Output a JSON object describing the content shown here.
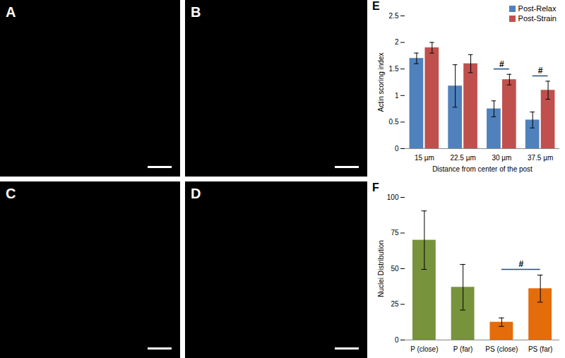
{
  "image_panels": [
    "A",
    "B",
    "C",
    "D"
  ],
  "chart_data": [
    {
      "type": "bar",
      "title": "E",
      "categories": [
        "15 µm",
        "22.5 µm",
        "30 µm",
        "37.5 µm"
      ],
      "series": [
        {
          "name": "Post-Relax",
          "color": "#4f81bd",
          "values": [
            1.7,
            1.18,
            0.75,
            0.54
          ],
          "errors": [
            0.1,
            0.4,
            0.15,
            0.15
          ]
        },
        {
          "name": "Post-Strain",
          "color": "#c0504d",
          "values": [
            1.9,
            1.6,
            1.3,
            1.1
          ],
          "errors": [
            0.1,
            0.17,
            0.1,
            0.17
          ]
        }
      ],
      "xlabel": "Distance from center of the post",
      "ylabel": "Actin scoring index",
      "ylim": [
        0,
        2.5
      ],
      "yticks": [
        0,
        0.5,
        1,
        1.5,
        2,
        2.5
      ],
      "grid": false,
      "legend": "top-right",
      "annotations": [
        {
          "text": "#",
          "x": "30 µm"
        },
        {
          "text": "#",
          "x": "37.5 µm"
        }
      ]
    },
    {
      "type": "bar",
      "title": "F",
      "categories": [
        "P (close)",
        "P (far)",
        "PS (close)",
        "PS (far)"
      ],
      "values": [
        70,
        37,
        12.5,
        36
      ],
      "errors": [
        20.5,
        16,
        3,
        9.5
      ],
      "colors": [
        "#77933c",
        "#77933c",
        "#e46c0a",
        "#e46c0a"
      ],
      "ylabel": "Nuclei Distribution",
      "ylim": [
        0,
        100
      ],
      "yticks": [
        0,
        25,
        50,
        75,
        100
      ],
      "grid": false,
      "annotations": [
        {
          "text": "#",
          "x": [
            "PS (close)",
            "PS (far)"
          ]
        }
      ]
    }
  ]
}
